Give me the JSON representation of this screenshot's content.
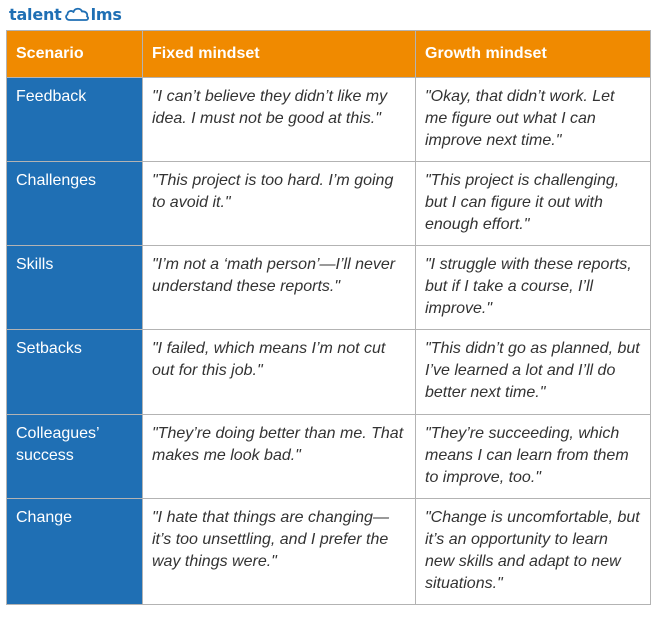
{
  "brand": {
    "name_left": "talent",
    "name_right": "lms",
    "icon": "cloud-icon",
    "color": "#1f6fb4"
  },
  "colors": {
    "header_bg": "#f08a00",
    "scenario_bg": "#1f6fb4",
    "border": "#b3b3b3"
  },
  "table": {
    "headers": [
      "Scenario",
      "Fixed mindset",
      "Growth mindset"
    ],
    "rows": [
      {
        "scenario": "Feedback",
        "fixed": "\"I can’t believe they didn’t like my idea. I must not be good at this.\"",
        "growth": "\"Okay, that didn’t work. Let me figure out what I can improve next time.\""
      },
      {
        "scenario": "Challenges",
        "fixed": "\"This project is too hard. I’m going to avoid it.\"",
        "growth": "\"This project is challenging, but I can figure it out with enough effort.\""
      },
      {
        "scenario": "Skills",
        "fixed": "\"I’m not a ‘math person’—I’ll never understand these reports.\"",
        "growth": "\"I struggle with these reports, but if I take a course, I’ll improve.\""
      },
      {
        "scenario": "Setbacks",
        "fixed": "\"I failed, which means I’m not cut out for this job.\"",
        "growth": "\"This didn’t go as planned, but I’ve learned a lot and I’ll do better next time.\""
      },
      {
        "scenario": "Colleagues’ success",
        "fixed": "\"They’re doing better than me. That makes me look bad.\"",
        "growth": "\"They’re succeeding, which means I can learn from them to improve, too.\""
      },
      {
        "scenario": "Change",
        "fixed": "\"I hate that things are changing—it’s too unsettling, and I prefer the way things were.\"",
        "growth": "\"Change is uncomfortable, but it’s an opportunity to learn new skills and adapt to new situations.\""
      }
    ]
  }
}
